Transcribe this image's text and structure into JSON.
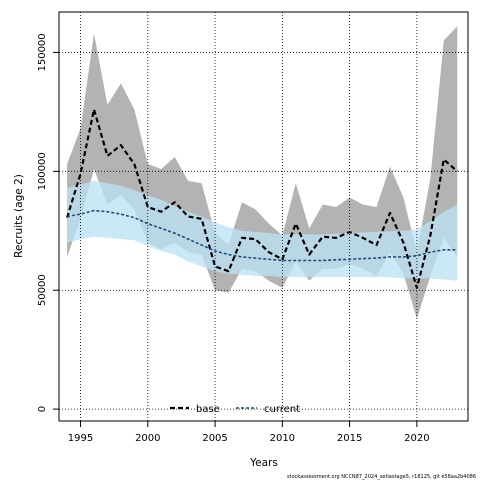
{
  "chart_data": {
    "type": "line",
    "xlabel": "Years",
    "ylabel": "Recruits (age 2)",
    "xlim": [
      1993.4,
      2023.8
    ],
    "ylim": [
      -5000,
      167000
    ],
    "x_ticks": [
      1995,
      2000,
      2005,
      2010,
      2015,
      2020
    ],
    "y_ticks": [
      0,
      50000,
      100000,
      150000
    ],
    "grid": true,
    "legend_position": "bottom-center",
    "x": [
      1994,
      1995,
      1996,
      1997,
      1998,
      1999,
      2000,
      2001,
      2002,
      2003,
      2004,
      2005,
      2006,
      2007,
      2008,
      2009,
      2010,
      2011,
      2012,
      2013,
      2014,
      2015,
      2016,
      2017,
      2018,
      2019,
      2020,
      2021,
      2022,
      2023
    ],
    "series": [
      {
        "name": "base",
        "color": "#000000",
        "band_color": "#b3b3b3",
        "values": [
          80500,
          99000,
          126000,
          106500,
          111000,
          103000,
          85000,
          83000,
          87000,
          81000,
          80000,
          60000,
          58000,
          72000,
          71500,
          66000,
          63000,
          78000,
          65000,
          72500,
          72000,
          74500,
          72000,
          69000,
          82500,
          70000,
          51000,
          73000,
          105000,
          100000
        ],
        "lower": [
          64000,
          80000,
          101000,
          86000,
          90000,
          84000,
          70000,
          67000,
          70000,
          66000,
          65000,
          50000,
          49000,
          59000,
          58000,
          54000,
          51000,
          62000,
          54000,
          59000,
          59000,
          61000,
          59000,
          56000,
          66000,
          57000,
          38000,
          56000,
          72000,
          64000
        ],
        "upper": [
          103000,
          118000,
          158000,
          128000,
          137000,
          126000,
          103000,
          101000,
          106000,
          96000,
          95000,
          74000,
          69000,
          87000,
          84000,
          78000,
          73000,
          95000,
          76000,
          86000,
          85000,
          89000,
          86000,
          85000,
          102000,
          89000,
          66000,
          97000,
          155000,
          161000
        ]
      },
      {
        "name": "current",
        "color": "#1f4e79",
        "band_color": "#bde2f3",
        "values": [
          81000,
          82000,
          83500,
          83000,
          82000,
          80500,
          78000,
          76000,
          74000,
          71500,
          69000,
          66500,
          65000,
          64000,
          63500,
          63000,
          62500,
          62500,
          62500,
          62500,
          62800,
          63000,
          63300,
          63500,
          64000,
          64000,
          64500,
          66000,
          67000,
          67000
        ],
        "lower": [
          70000,
          71500,
          72500,
          72000,
          71500,
          71000,
          68500,
          66500,
          65000,
          62000,
          60000,
          58000,
          57000,
          56500,
          56000,
          56000,
          55500,
          55500,
          55500,
          55500,
          55500,
          55500,
          55500,
          55500,
          55500,
          55000,
          55000,
          55000,
          54500,
          54000
        ],
        "upper": [
          93000,
          94500,
          96000,
          95000,
          94000,
          92000,
          90000,
          88000,
          85500,
          83000,
          81000,
          78500,
          76500,
          75000,
          74500,
          74000,
          73500,
          73500,
          73500,
          73500,
          73800,
          74000,
          74300,
          74500,
          74800,
          75000,
          75500,
          79000,
          83000,
          86000
        ]
      }
    ]
  },
  "footnote": "stockassessment.org NCCN87_2024_setlastage5, r18125, git e58aa2b4086"
}
